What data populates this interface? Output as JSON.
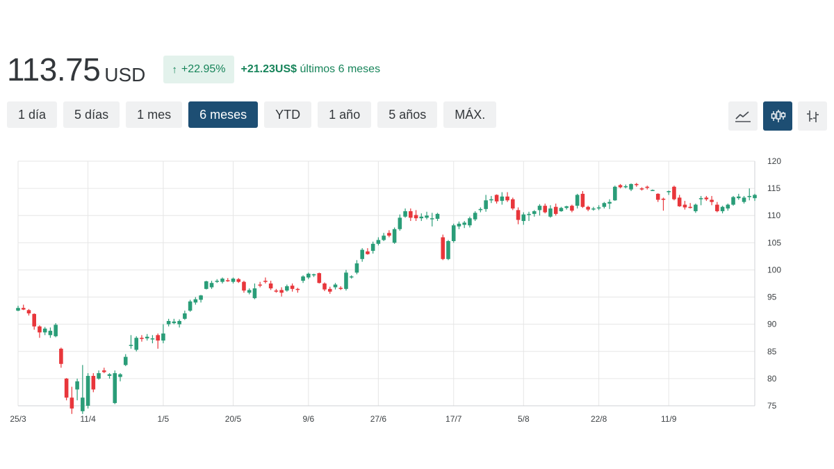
{
  "quote": {
    "price": "113.75",
    "currency": "USD",
    "change_percent": "+22.95%",
    "change_amount": "+21.23",
    "change_currency": "US$",
    "period_text": "últimos 6 meses"
  },
  "ranges": [
    "1 día",
    "5 días",
    "1 mes",
    "6 meses",
    "YTD",
    "1 año",
    "5 años",
    "MÁX."
  ],
  "active_range": "6 meses",
  "chart_types": [
    {
      "name": "line-chart-icon",
      "active": false
    },
    {
      "name": "candlestick-chart-icon",
      "active": true
    },
    {
      "name": "ohlc-bar-chart-icon",
      "active": false
    }
  ],
  "colors": {
    "up": "#2a9d78",
    "down": "#e8363b",
    "grid": "#e6e6e6",
    "accent": "#1d4e73"
  },
  "chart_data": {
    "type": "candlestick",
    "ylim": [
      75,
      120
    ],
    "yticks": [
      "120",
      "115",
      "110",
      "105",
      "100",
      "95",
      "90",
      "85",
      "80",
      "75"
    ],
    "xticks": [
      "25/3",
      "11/4",
      "1/5",
      "20/5",
      "9/6",
      "27/6",
      "17/7",
      "5/8",
      "22/8",
      "11/9"
    ],
    "x_tick_index": [
      0,
      13,
      27,
      40,
      54,
      67,
      81,
      94,
      108,
      121
    ],
    "ohlc": [
      [
        92.5,
        93.4,
        92.4,
        93.0
      ],
      [
        93.0,
        93.6,
        92.6,
        92.7
      ],
      [
        92.6,
        92.8,
        91.6,
        92.0
      ],
      [
        91.9,
        92.0,
        89.0,
        89.6
      ],
      [
        89.6,
        89.8,
        87.5,
        88.5
      ],
      [
        88.5,
        89.5,
        88.0,
        89.2
      ],
      [
        88.0,
        89.4,
        87.5,
        88.8
      ],
      [
        87.8,
        90.2,
        87.6,
        89.9
      ],
      [
        85.5,
        85.7,
        82.0,
        82.7
      ],
      [
        80.0,
        80.1,
        76.0,
        76.5
      ],
      [
        76.5,
        78.5,
        73.5,
        74.5
      ],
      [
        78.0,
        80.0,
        76.0,
        79.5
      ],
      [
        74.0,
        82.5,
        73.5,
        76.5
      ],
      [
        75.0,
        81.0,
        74.5,
        80.5
      ],
      [
        80.5,
        81.0,
        77.5,
        78.0
      ],
      [
        80.0,
        81.5,
        79.8,
        81.0
      ],
      [
        81.5,
        82.0,
        81.0,
        81.2
      ],
      [
        80.5,
        81.0,
        80.0,
        80.8
      ],
      [
        75.5,
        81.5,
        75.3,
        81.0
      ],
      [
        80.3,
        81.0,
        79.5,
        80.8
      ],
      [
        82.5,
        84.5,
        82.3,
        84.0
      ],
      [
        86.0,
        88.0,
        85.5,
        86.2
      ],
      [
        85.3,
        87.8,
        85.0,
        87.5
      ],
      [
        87.5,
        88.0,
        86.8,
        87.3
      ],
      [
        87.4,
        88.2,
        87.0,
        87.7
      ],
      [
        87.3,
        88.0,
        86.5,
        87.4
      ],
      [
        88.0,
        88.3,
        85.5,
        87.0
      ],
      [
        87.0,
        90.0,
        86.5,
        88.3
      ],
      [
        90.0,
        91.0,
        89.6,
        90.6
      ],
      [
        90.2,
        91.0,
        90.0,
        90.5
      ],
      [
        90.0,
        90.9,
        89.4,
        90.6
      ],
      [
        91.0,
        92.5,
        90.8,
        92.0
      ],
      [
        92.5,
        94.5,
        92.3,
        94.2
      ],
      [
        94.0,
        95.0,
        93.6,
        94.6
      ],
      [
        94.5,
        95.4,
        94.0,
        95.3
      ],
      [
        96.5,
        98.0,
        96.4,
        97.9
      ],
      [
        96.8,
        98.0,
        96.5,
        97.6
      ],
      [
        97.8,
        98.3,
        97.6,
        98.0
      ],
      [
        97.8,
        98.6,
        97.5,
        98.4
      ],
      [
        98.1,
        98.5,
        97.8,
        98.0
      ],
      [
        97.8,
        98.6,
        97.5,
        98.4
      ],
      [
        98.3,
        98.5,
        97.6,
        97.8
      ],
      [
        97.8,
        98.0,
        95.8,
        96.2
      ],
      [
        95.8,
        96.6,
        95.5,
        96.3
      ],
      [
        94.8,
        97.5,
        94.6,
        96.6
      ],
      [
        97.3,
        97.8,
        96.8,
        97.2
      ],
      [
        98.0,
        98.6,
        97.5,
        97.8
      ],
      [
        97.5,
        98.0,
        96.3,
        96.6
      ],
      [
        96.2,
        96.5,
        95.8,
        96.0
      ],
      [
        96.3,
        96.8,
        95.1,
        95.8
      ],
      [
        96.2,
        97.3,
        96.0,
        97.0
      ],
      [
        97.1,
        97.5,
        96.0,
        96.5
      ],
      [
        96.5,
        96.7,
        95.8,
        96.4
      ],
      [
        98.0,
        99.0,
        97.6,
        98.8
      ],
      [
        98.6,
        99.5,
        98.3,
        99.3
      ],
      [
        99.0,
        99.3,
        98.7,
        99.2
      ],
      [
        99.4,
        99.5,
        97.5,
        97.6
      ],
      [
        97.5,
        97.7,
        96.1,
        96.4
      ],
      [
        96.5,
        96.9,
        95.6,
        96.0
      ],
      [
        96.8,
        97.6,
        96.4,
        97.3
      ],
      [
        96.7,
        97.0,
        96.3,
        96.5
      ],
      [
        96.5,
        100.0,
        96.2,
        99.5
      ],
      [
        98.8,
        99.0,
        98.4,
        98.8
      ],
      [
        99.5,
        101.8,
        99.2,
        101.2
      ],
      [
        102.0,
        104.0,
        101.5,
        103.7
      ],
      [
        103.4,
        104.0,
        102.8,
        102.9
      ],
      [
        103.5,
        105.2,
        103.0,
        104.8
      ],
      [
        104.8,
        106.0,
        104.5,
        105.5
      ],
      [
        105.5,
        106.8,
        105.3,
        106.3
      ],
      [
        106.8,
        107.3,
        106.0,
        106.3
      ],
      [
        105.0,
        107.8,
        104.8,
        107.5
      ],
      [
        107.5,
        110.2,
        107.2,
        109.6
      ],
      [
        109.8,
        111.3,
        109.6,
        110.8
      ],
      [
        110.8,
        111.3,
        109.0,
        109.6
      ],
      [
        110.1,
        111.0,
        109.0,
        109.5
      ],
      [
        109.5,
        110.4,
        109.0,
        109.8
      ],
      [
        109.6,
        110.7,
        109.3,
        110.0
      ],
      [
        109.5,
        110.5,
        108.0,
        109.5
      ],
      [
        109.4,
        110.5,
        109.0,
        110.3
      ],
      [
        106.0,
        106.5,
        101.8,
        102.0
      ],
      [
        102.0,
        105.5,
        101.8,
        105.3
      ],
      [
        105.3,
        108.5,
        105.0,
        108.2
      ],
      [
        108.0,
        108.9,
        107.5,
        108.5
      ],
      [
        108.3,
        109.0,
        107.7,
        108.7
      ],
      [
        108.2,
        109.8,
        107.8,
        109.5
      ],
      [
        109.3,
        110.8,
        109.0,
        110.5
      ],
      [
        111.0,
        111.5,
        110.6,
        111.2
      ],
      [
        111.2,
        113.8,
        110.7,
        112.8
      ],
      [
        112.8,
        113.6,
        112.3,
        113.0
      ],
      [
        113.8,
        113.9,
        112.2,
        112.6
      ],
      [
        112.7,
        114.3,
        112.0,
        113.5
      ],
      [
        113.5,
        114.3,
        112.5,
        112.8
      ],
      [
        113.0,
        113.3,
        111.0,
        111.3
      ],
      [
        111.0,
        111.5,
        108.4,
        109.2
      ],
      [
        109.0,
        110.6,
        108.3,
        110.2
      ],
      [
        110.1,
        110.7,
        109.0,
        110.3
      ],
      [
        110.3,
        111.0,
        109.8,
        110.8
      ],
      [
        111.0,
        112.1,
        110.0,
        111.8
      ],
      [
        111.8,
        112.2,
        110.4,
        110.6
      ],
      [
        109.8,
        111.9,
        109.6,
        111.3
      ],
      [
        111.6,
        112.2,
        110.0,
        110.3
      ],
      [
        110.8,
        111.6,
        110.7,
        111.4
      ],
      [
        111.4,
        111.8,
        111.1,
        111.7
      ],
      [
        111.8,
        112.0,
        110.6,
        110.9
      ],
      [
        111.8,
        114.0,
        111.3,
        113.8
      ],
      [
        114.0,
        114.5,
        111.4,
        111.6
      ],
      [
        111.6,
        111.8,
        110.8,
        111.1
      ],
      [
        111.2,
        111.6,
        110.9,
        111.3
      ],
      [
        111.3,
        111.9,
        111.0,
        111.5
      ],
      [
        111.6,
        112.5,
        111.3,
        112.3
      ],
      [
        112.2,
        113.0,
        111.2,
        112.5
      ],
      [
        112.8,
        115.5,
        112.7,
        115.3
      ],
      [
        115.6,
        115.8,
        115.0,
        115.2
      ],
      [
        115.4,
        115.7,
        115.0,
        115.4
      ],
      [
        114.8,
        115.9,
        114.5,
        115.8
      ],
      [
        115.8,
        116.0,
        115.3,
        115.6
      ],
      [
        115.0,
        115.2,
        114.6,
        114.8
      ],
      [
        115.3,
        115.5,
        114.8,
        115.1
      ],
      [
        114.7,
        114.8,
        114.6,
        114.7
      ],
      [
        114.0,
        114.1,
        112.5,
        112.9
      ],
      [
        113.1,
        113.3,
        110.9,
        112.9
      ],
      [
        114.3,
        114.6,
        113.8,
        114.5
      ],
      [
        115.3,
        115.5,
        112.8,
        113.0
      ],
      [
        113.3,
        113.8,
        111.6,
        111.7
      ],
      [
        112.0,
        112.7,
        111.1,
        111.5
      ],
      [
        111.6,
        112.3,
        111.3,
        111.4
      ],
      [
        110.8,
        112.2,
        110.5,
        112.0
      ],
      [
        113.0,
        113.6,
        111.9,
        113.2
      ],
      [
        113.3,
        113.6,
        112.7,
        113.0
      ],
      [
        112.9,
        113.6,
        111.9,
        112.5
      ],
      [
        112.0,
        112.5,
        110.6,
        110.8
      ],
      [
        110.8,
        111.8,
        110.4,
        111.6
      ],
      [
        111.3,
        112.2,
        110.9,
        112.0
      ],
      [
        112.0,
        113.6,
        111.8,
        113.4
      ],
      [
        113.2,
        114.0,
        112.9,
        113.5
      ],
      [
        112.5,
        113.6,
        112.2,
        113.3
      ],
      [
        113.4,
        115.0,
        112.8,
        113.6
      ],
      [
        113.2,
        114.0,
        112.7,
        113.8
      ]
    ]
  }
}
